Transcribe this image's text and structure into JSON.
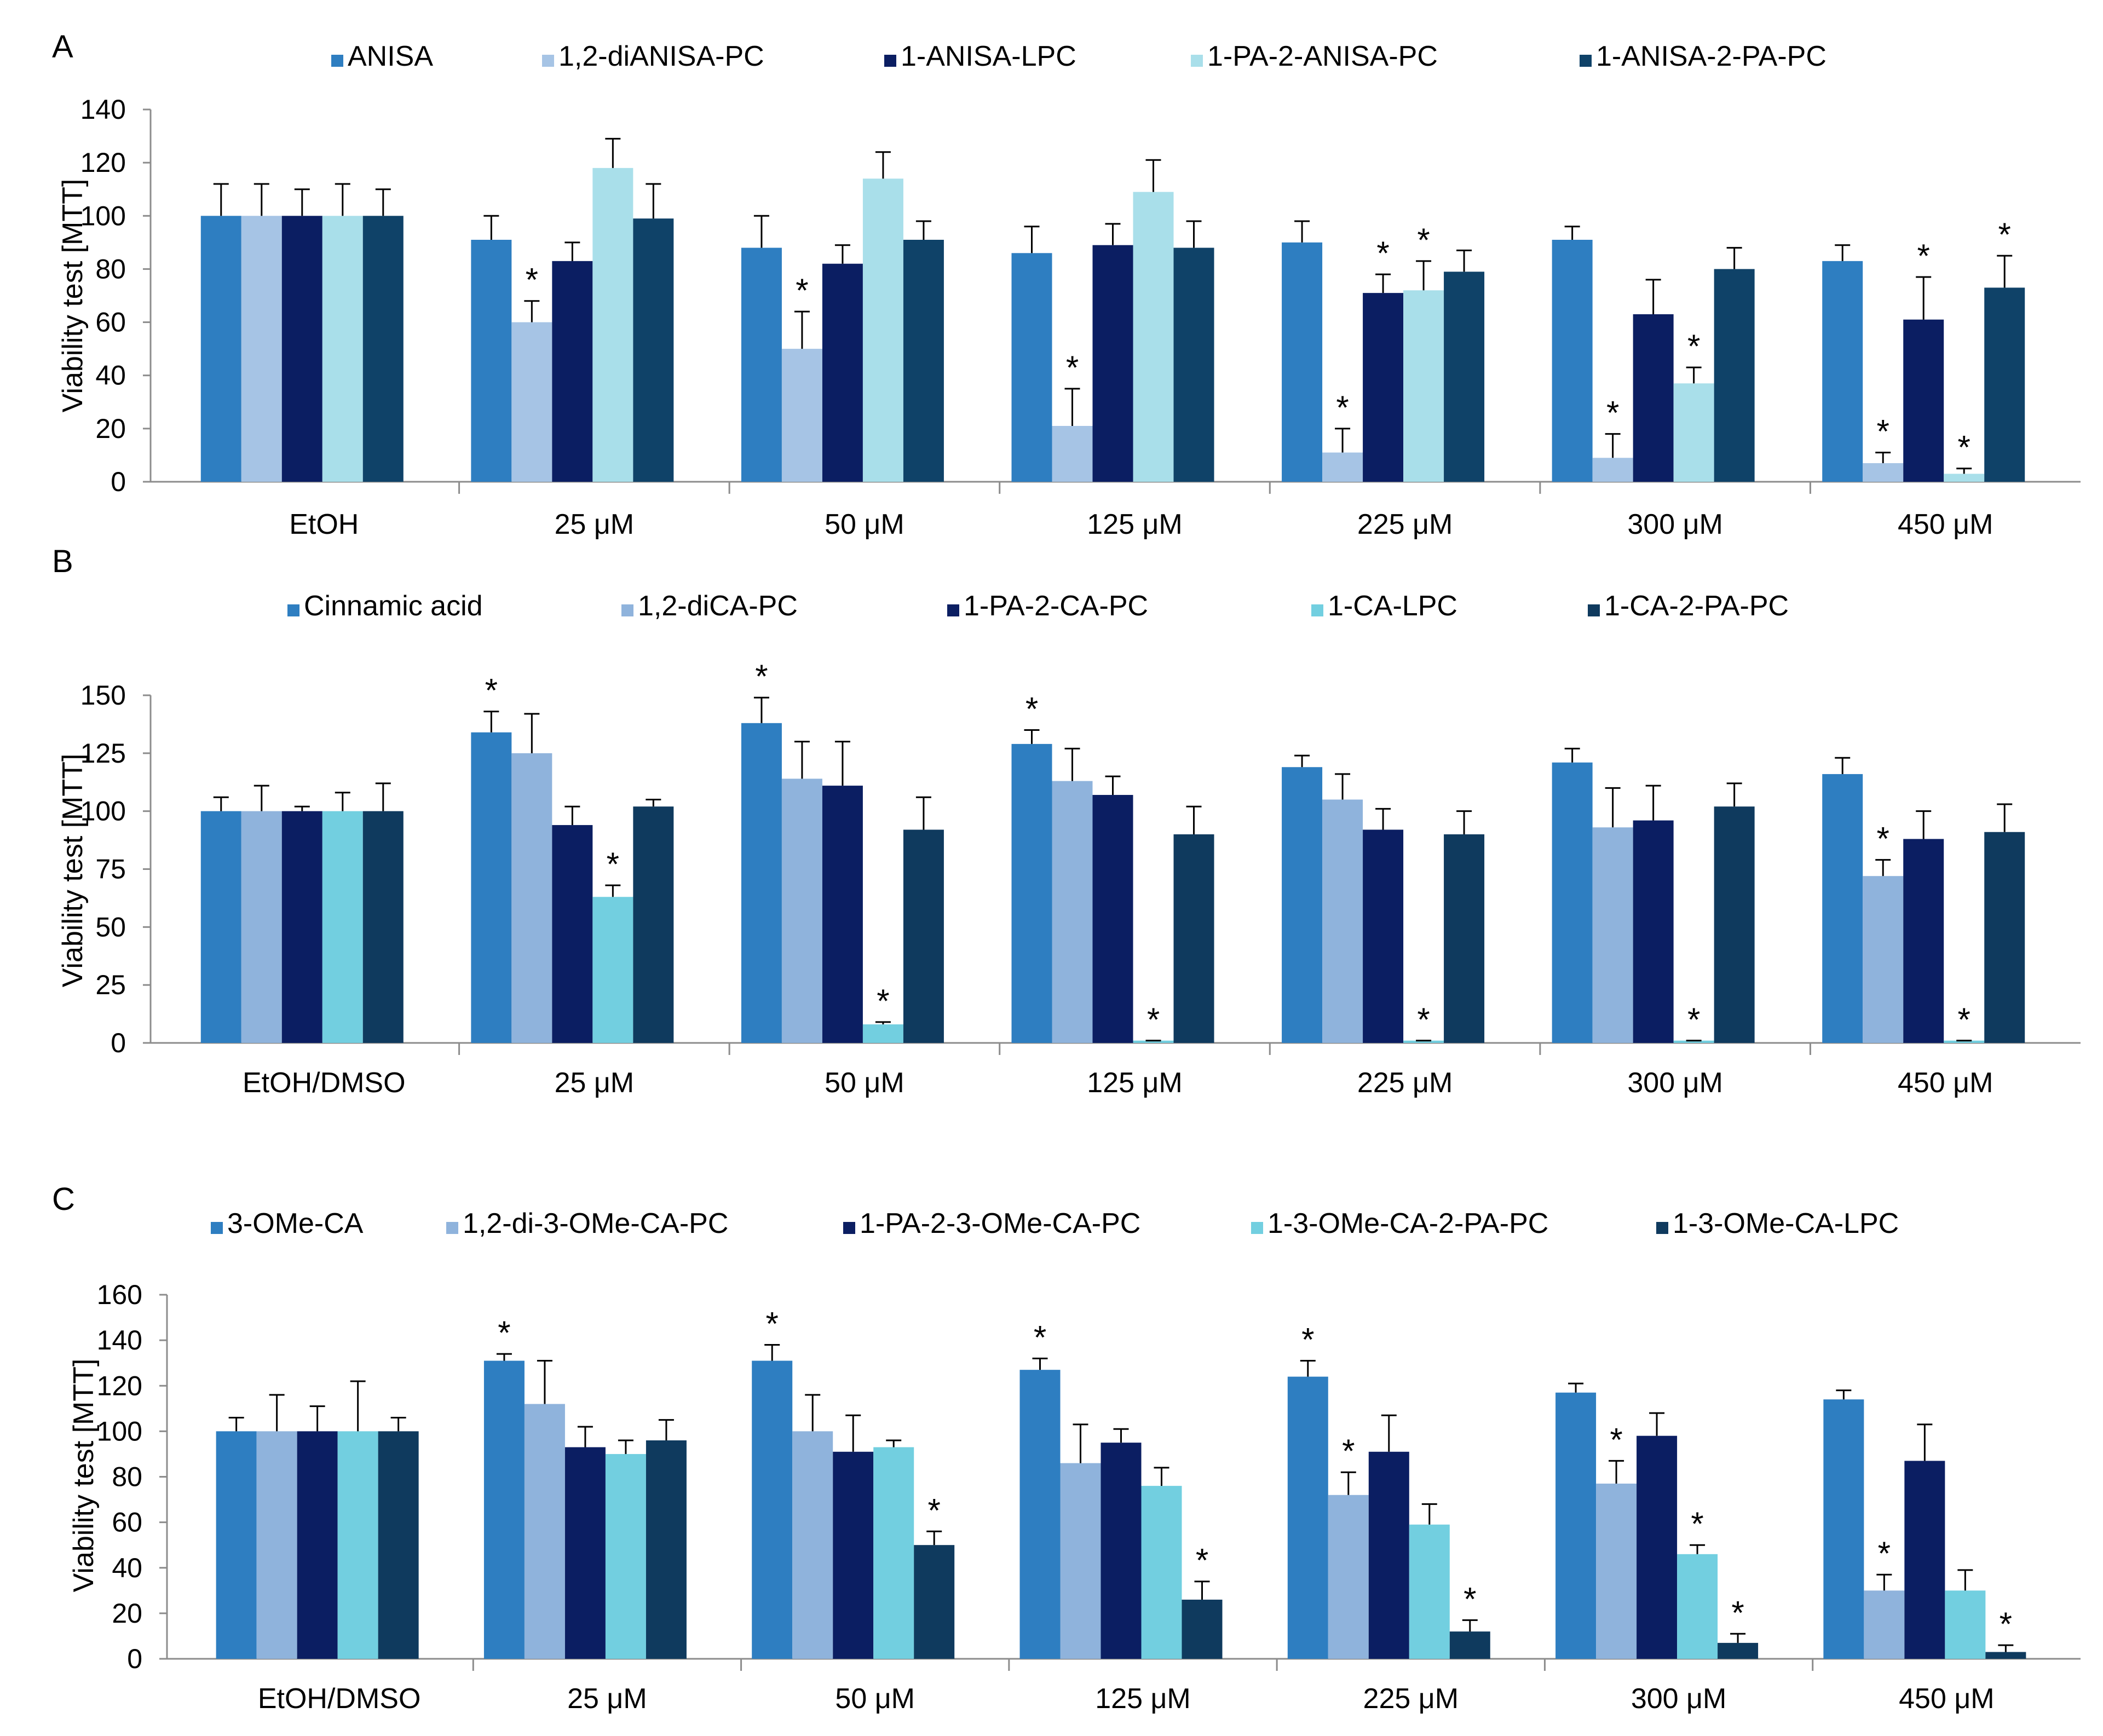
{
  "chart_data": [
    {
      "type": "bar",
      "panel_label": "A",
      "ylabel": "Viability test [MTT]",
      "ylim": [
        0,
        140
      ],
      "yticks": [
        0,
        20,
        40,
        60,
        80,
        100,
        120,
        140
      ],
      "legend_placement": "top",
      "categories": [
        "EtOH",
        "25 μM",
        "50 μM",
        "125 μM",
        "225 μM",
        "300 μM",
        "450 μM"
      ],
      "colors": [
        "#2e7ec1",
        "#a6c4e5",
        "#0b1e62",
        "#a9dfea",
        "#0f4268"
      ],
      "series": [
        {
          "name": "ANISA",
          "values": [
            100,
            91,
            88,
            86,
            90,
            91,
            83
          ],
          "errors": [
            12,
            9,
            12,
            10,
            8,
            5,
            6
          ],
          "stars": [
            false,
            false,
            false,
            false,
            false,
            false,
            false
          ]
        },
        {
          "name": "1,2-diANISA-PC",
          "values": [
            100,
            60,
            50,
            21,
            11,
            9,
            7
          ],
          "errors": [
            12,
            8,
            14,
            14,
            9,
            9,
            4
          ],
          "stars": [
            false,
            true,
            true,
            true,
            true,
            true,
            true
          ]
        },
        {
          "name": "1-ANISA-LPC",
          "values": [
            100,
            83,
            82,
            89,
            71,
            63,
            61
          ],
          "errors": [
            10,
            7,
            7,
            8,
            7,
            13,
            16
          ],
          "stars": [
            false,
            false,
            false,
            false,
            true,
            false,
            true
          ]
        },
        {
          "name": "1-PA-2-ANISA-PC",
          "values": [
            100,
            118,
            114,
            109,
            72,
            37,
            3
          ],
          "errors": [
            12,
            11,
            10,
            12,
            11,
            6,
            2
          ],
          "stars": [
            false,
            false,
            false,
            false,
            true,
            true,
            true
          ]
        },
        {
          "name": "1-ANISA-2-PA-PC",
          "values": [
            100,
            99,
            91,
            88,
            79,
            80,
            73
          ],
          "errors": [
            10,
            13,
            7,
            10,
            8,
            8,
            12
          ],
          "stars": [
            false,
            false,
            false,
            false,
            false,
            false,
            true
          ]
        }
      ]
    },
    {
      "type": "bar",
      "panel_label": "B",
      "ylabel": "Viability test [MTT]",
      "ylim": [
        0,
        150
      ],
      "yticks": [
        0,
        25,
        50,
        75,
        100,
        125,
        150
      ],
      "legend_placement": "top",
      "categories": [
        "EtOH/DMSO",
        "25 μM",
        "50 μM",
        "125 μM",
        "225 μM",
        "300 μM",
        "450 μM"
      ],
      "colors": [
        "#2e7ec1",
        "#8fb3dc",
        "#0b1e62",
        "#72cfe0",
        "#0f3a5e"
      ],
      "series": [
        {
          "name": "Cinnamic acid",
          "values": [
            100,
            134,
            138,
            129,
            119,
            121,
            116
          ],
          "errors": [
            6,
            9,
            11,
            6,
            5,
            6,
            7
          ],
          "stars": [
            false,
            true,
            true,
            true,
            false,
            false,
            false
          ]
        },
        {
          "name": "1,2-diCA-PC",
          "values": [
            100,
            125,
            114,
            113,
            105,
            93,
            72
          ],
          "errors": [
            11,
            17,
            16,
            14,
            11,
            17,
            7
          ],
          "stars": [
            false,
            false,
            false,
            false,
            false,
            false,
            true
          ]
        },
        {
          "name": "1-PA-2-CA-PC",
          "values": [
            100,
            94,
            111,
            107,
            92,
            96,
            88
          ],
          "errors": [
            2,
            8,
            19,
            8,
            9,
            15,
            12
          ],
          "stars": [
            false,
            false,
            false,
            false,
            false,
            false,
            false
          ]
        },
        {
          "name": "1-CA-LPC",
          "values": [
            100,
            63,
            8,
            1,
            1,
            1,
            1
          ],
          "errors": [
            8,
            5,
            1,
            0,
            0,
            0,
            0
          ],
          "stars": [
            false,
            true,
            true,
            true,
            true,
            true,
            true
          ]
        },
        {
          "name": "1-CA-2-PA-PC",
          "values": [
            100,
            102,
            92,
            90,
            90,
            102,
            91
          ],
          "errors": [
            12,
            3,
            14,
            12,
            10,
            10,
            12
          ],
          "stars": [
            false,
            false,
            false,
            false,
            false,
            false,
            false
          ]
        }
      ]
    },
    {
      "type": "bar",
      "panel_label": "C",
      "ylabel": "Viability test [MTT]",
      "ylim": [
        0,
        160
      ],
      "yticks": [
        0,
        20,
        40,
        60,
        80,
        100,
        120,
        140,
        160
      ],
      "legend_placement": "top",
      "categories": [
        "EtOH/DMSO",
        "25 μM",
        "50 μM",
        "125 μM",
        "225 μM",
        "300 μM",
        "450 μM"
      ],
      "colors": [
        "#2e7ec1",
        "#8fb3dc",
        "#0b1e62",
        "#72cfe0",
        "#0f3a5e"
      ],
      "series": [
        {
          "name": "3-OMe-CA",
          "values": [
            100,
            131,
            131,
            127,
            124,
            117,
            114
          ],
          "errors": [
            6,
            3,
            7,
            5,
            7,
            4,
            4
          ],
          "stars": [
            false,
            true,
            true,
            true,
            true,
            false,
            false
          ]
        },
        {
          "name": "1,2-di-3-OMe-CA-PC",
          "values": [
            100,
            112,
            100,
            86,
            72,
            77,
            30
          ],
          "errors": [
            16,
            19,
            16,
            17,
            10,
            10,
            7
          ],
          "stars": [
            false,
            false,
            false,
            false,
            true,
            true,
            true
          ]
        },
        {
          "name": "1-PA-2-3-OMe-CA-PC",
          "values": [
            100,
            93,
            91,
            95,
            91,
            98,
            87
          ],
          "errors": [
            11,
            9,
            16,
            6,
            16,
            10,
            16
          ],
          "stars": [
            false,
            false,
            false,
            false,
            false,
            false,
            false
          ]
        },
        {
          "name": "1-3-OMe-CA-2-PA-PC",
          "values": [
            100,
            90,
            93,
            76,
            59,
            46,
            30
          ],
          "errors": [
            22,
            6,
            3,
            8,
            9,
            4,
            9
          ],
          "stars": [
            false,
            false,
            false,
            false,
            false,
            true,
            false
          ]
        },
        {
          "name": "1-3-OMe-CA-LPC",
          "values": [
            100,
            96,
            50,
            26,
            12,
            7,
            3
          ],
          "errors": [
            6,
            9,
            6,
            8,
            5,
            4,
            3
          ],
          "stars": [
            false,
            false,
            true,
            true,
            true,
            true,
            true
          ]
        }
      ]
    }
  ]
}
